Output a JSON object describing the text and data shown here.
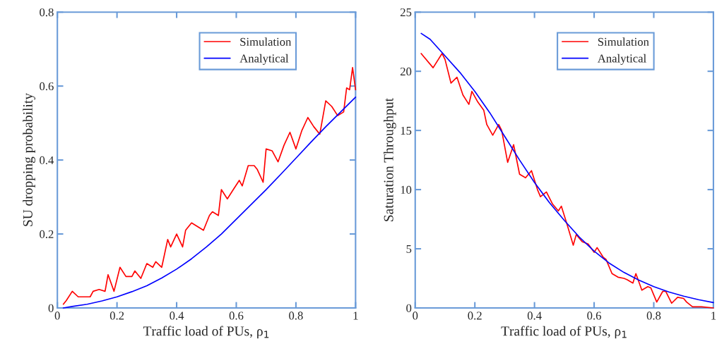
{
  "chart_data": [
    {
      "type": "line",
      "xlabel": "Traffic load of PUs, ρ$_{1}$",
      "ylabel": "SU dropping probability",
      "xlim": [
        0,
        1
      ],
      "ylim": [
        0,
        0.8
      ],
      "xticks": [
        0,
        0.2,
        0.4,
        0.6,
        0.8,
        1
      ],
      "yticks": [
        0,
        0.2,
        0.4,
        0.6,
        0.8
      ],
      "grid": false,
      "legend": "top right",
      "marker": "none",
      "line_style": "solid",
      "series": [
        {
          "name": "Simulation",
          "color": "#ff0000",
          "x": [
            0.02,
            0.03,
            0.05,
            0.07,
            0.09,
            0.11,
            0.12,
            0.14,
            0.16,
            0.17,
            0.19,
            0.21,
            0.23,
            0.25,
            0.26,
            0.28,
            0.3,
            0.32,
            0.33,
            0.35,
            0.37,
            0.38,
            0.4,
            0.42,
            0.43,
            0.45,
            0.47,
            0.49,
            0.51,
            0.52,
            0.54,
            0.55,
            0.57,
            0.59,
            0.61,
            0.62,
            0.64,
            0.66,
            0.67,
            0.69,
            0.7,
            0.72,
            0.74,
            0.76,
            0.78,
            0.8,
            0.82,
            0.84,
            0.86,
            0.88,
            0.9,
            0.92,
            0.94,
            0.96,
            0.97,
            0.98,
            0.99,
            1.0
          ],
          "values": [
            0.01,
            0.02,
            0.045,
            0.03,
            0.03,
            0.03,
            0.045,
            0.05,
            0.045,
            0.09,
            0.045,
            0.11,
            0.085,
            0.085,
            0.1,
            0.08,
            0.12,
            0.11,
            0.125,
            0.11,
            0.185,
            0.165,
            0.2,
            0.165,
            0.21,
            0.23,
            0.22,
            0.21,
            0.25,
            0.26,
            0.25,
            0.32,
            0.295,
            0.32,
            0.345,
            0.33,
            0.385,
            0.385,
            0.375,
            0.34,
            0.43,
            0.425,
            0.395,
            0.44,
            0.475,
            0.43,
            0.48,
            0.515,
            0.49,
            0.47,
            0.56,
            0.545,
            0.52,
            0.53,
            0.595,
            0.59,
            0.65,
            0.59
          ]
        },
        {
          "name": "Analytical",
          "color": "#0000ff",
          "x": [
            0.02,
            0.05,
            0.1,
            0.15,
            0.2,
            0.25,
            0.3,
            0.35,
            0.4,
            0.45,
            0.5,
            0.55,
            0.6,
            0.65,
            0.7,
            0.75,
            0.8,
            0.85,
            0.9,
            0.95,
            1.0
          ],
          "values": [
            0.0,
            0.004,
            0.01,
            0.019,
            0.03,
            0.044,
            0.06,
            0.081,
            0.105,
            0.133,
            0.165,
            0.2,
            0.24,
            0.28,
            0.32,
            0.362,
            0.405,
            0.448,
            0.49,
            0.53,
            0.57
          ]
        }
      ]
    },
    {
      "type": "line",
      "xlabel": "Traffic load of PUs, ρ$_{1}$",
      "ylabel": "Saturation Throughput",
      "xlim": [
        0,
        1
      ],
      "ylim": [
        0,
        25
      ],
      "xticks": [
        0,
        0.2,
        0.4,
        0.6,
        0.8,
        1
      ],
      "yticks": [
        0,
        5,
        10,
        15,
        20,
        25
      ],
      "grid": false,
      "legend": "top right",
      "marker": "none",
      "line_style": "solid",
      "series": [
        {
          "name": "Simulation",
          "color": "#ff0000",
          "x": [
            0.02,
            0.06,
            0.09,
            0.1,
            0.12,
            0.14,
            0.16,
            0.18,
            0.19,
            0.21,
            0.23,
            0.24,
            0.26,
            0.28,
            0.29,
            0.31,
            0.33,
            0.35,
            0.37,
            0.39,
            0.41,
            0.42,
            0.44,
            0.46,
            0.48,
            0.49,
            0.51,
            0.53,
            0.54,
            0.56,
            0.58,
            0.6,
            0.61,
            0.63,
            0.64,
            0.66,
            0.68,
            0.7,
            0.71,
            0.73,
            0.74,
            0.76,
            0.78,
            0.79,
            0.81,
            0.83,
            0.84,
            0.86,
            0.88,
            0.9,
            0.91,
            0.93,
            0.96,
            1.0
          ],
          "values": [
            21.5,
            20.3,
            21.5,
            21.0,
            19.0,
            19.5,
            18.0,
            17.2,
            18.3,
            17.4,
            16.7,
            15.5,
            14.6,
            15.5,
            15.0,
            12.3,
            13.8,
            11.3,
            11.0,
            11.6,
            10.0,
            9.4,
            9.8,
            8.8,
            8.2,
            8.6,
            7.0,
            5.3,
            6.2,
            5.6,
            5.4,
            4.7,
            5.1,
            4.3,
            4.1,
            2.9,
            2.6,
            2.5,
            2.4,
            2.1,
            2.9,
            1.5,
            1.8,
            1.7,
            0.5,
            1.4,
            1.4,
            0.4,
            0.9,
            0.8,
            0.5,
            0.1,
            0.1,
            0.0
          ]
        },
        {
          "name": "Analytical",
          "color": "#0000ff",
          "x": [
            0.02,
            0.05,
            0.1,
            0.15,
            0.2,
            0.25,
            0.3,
            0.35,
            0.4,
            0.45,
            0.5,
            0.55,
            0.6,
            0.65,
            0.7,
            0.75,
            0.8,
            0.85,
            0.9,
            0.95,
            1.0
          ],
          "values": [
            23.2,
            22.7,
            21.3,
            19.9,
            18.3,
            16.5,
            14.5,
            12.5,
            10.6,
            8.9,
            7.4,
            6.0,
            4.8,
            3.8,
            3.0,
            2.35,
            1.8,
            1.35,
            1.0,
            0.7,
            0.45
          ]
        }
      ]
    }
  ]
}
